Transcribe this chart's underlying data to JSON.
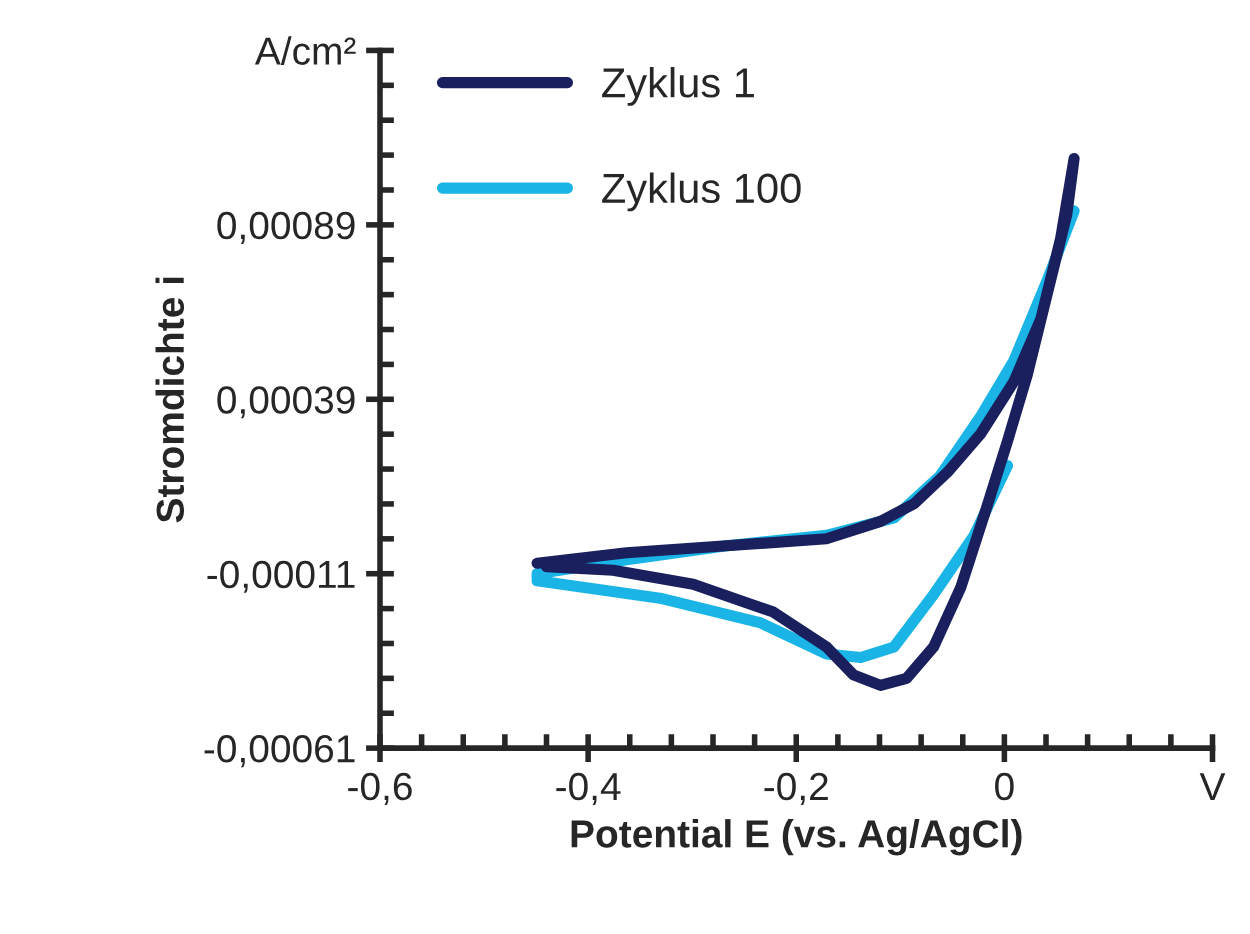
{
  "chart_data": {
    "type": "line",
    "xlabel": "Potential E (vs. Ag/AgCl)",
    "ylabel": "Stromdichte i",
    "series": [
      {
        "name": "Zyklus 1",
        "color": "#1a1f5e",
        "x": [
          -0.449,
          -0.363,
          -0.267,
          -0.171,
          -0.119,
          -0.087,
          -0.055,
          -0.023,
          0.009,
          0.035,
          0.054,
          0.067,
          0.06,
          0.041,
          0.022,
          0.003,
          -0.017,
          -0.042,
          -0.068,
          -0.094,
          -0.119,
          -0.145,
          -0.171,
          -0.222,
          -0.299,
          -0.376,
          -0.44
        ],
        "values": [
          -8e-05,
          -5e-05,
          -3e-05,
          -1e-05,
          4e-05,
          9e-05,
          0.00018,
          0.00029,
          0.00044,
          0.00062,
          0.00085,
          0.00108,
          0.00092,
          0.00069,
          0.00046,
          0.00027,
          8e-05,
          -0.00015,
          -0.00032,
          -0.00041,
          -0.00043,
          -0.0004,
          -0.00032,
          -0.00022,
          -0.00014,
          -0.0001,
          -9e-05
        ]
      },
      {
        "name": "Zyklus 100",
        "color": "#1ab4e6",
        "x": [
          0.003,
          -0.029,
          -0.068,
          -0.106,
          -0.138,
          -0.171,
          -0.235,
          -0.331,
          -0.449,
          -0.449,
          -0.363,
          -0.267,
          -0.171,
          -0.106,
          -0.062,
          -0.023,
          0.009,
          0.041,
          0.067
        ],
        "values": [
          0.0002,
          0.0,
          -0.00017,
          -0.00032,
          -0.00035,
          -0.00034,
          -0.00025,
          -0.00018,
          -0.00013,
          -0.00011,
          -7e-05,
          -3e-05,
          0.0,
          5e-05,
          0.00017,
          0.00034,
          0.0005,
          0.00073,
          0.00093
        ]
      }
    ],
    "xlim": [
      -0.6,
      0.2
    ],
    "xticks": [
      {
        "value": -0.6,
        "label": "-0,6"
      },
      {
        "value": -0.56,
        "label": null
      },
      {
        "value": -0.52,
        "label": null
      },
      {
        "value": -0.48,
        "label": null
      },
      {
        "value": -0.44,
        "label": null
      },
      {
        "value": -0.4,
        "label": "-0,4"
      },
      {
        "value": -0.36,
        "label": null
      },
      {
        "value": -0.32,
        "label": null
      },
      {
        "value": -0.28,
        "label": null
      },
      {
        "value": -0.24,
        "label": null
      },
      {
        "value": -0.2,
        "label": "-0,2"
      },
      {
        "value": -0.16,
        "label": null
      },
      {
        "value": -0.12,
        "label": null
      },
      {
        "value": -0.08,
        "label": null
      },
      {
        "value": -0.04,
        "label": null
      },
      0,
      {
        "value": 0.04,
        "label": null
      },
      {
        "value": 0.08,
        "label": null
      },
      {
        "value": 0.12,
        "label": null
      },
      {
        "value": 0.16,
        "label": null
      },
      {
        "value": 0.2,
        "label": "V"
      }
    ],
    "ylim": [
      -0.00061,
      0.00139
    ],
    "yticks": [
      {
        "value": -0.00061,
        "label": "-0,00061"
      },
      {
        "value": -0.00051,
        "label": null
      },
      {
        "value": -0.00041,
        "label": null
      },
      {
        "value": -0.00031,
        "label": null
      },
      {
        "value": -0.00021,
        "label": null
      },
      {
        "value": -0.00011,
        "label": "-0,00011"
      },
      {
        "value": -1e-05,
        "label": null
      },
      {
        "value": 9e-05,
        "label": null
      },
      {
        "value": 0.00019,
        "label": null
      },
      {
        "value": 0.00029,
        "label": null
      },
      {
        "value": 0.00039,
        "label": "0,00039"
      },
      {
        "value": 0.00049,
        "label": null
      },
      {
        "value": 0.00059,
        "label": null
      },
      {
        "value": 0.00069,
        "label": null
      },
      {
        "value": 0.00079,
        "label": null
      },
      {
        "value": 0.00089,
        "label": "0,00089"
      },
      {
        "value": 0.00099,
        "label": null
      },
      {
        "value": 0.00109,
        "label": null
      },
      {
        "value": 0.00119,
        "label": null
      },
      {
        "value": 0.00129,
        "label": null
      },
      {
        "value": 0.00139,
        "label": "A/cm²"
      }
    ],
    "grid": false,
    "legend": "top left",
    "marker": "none",
    "line_style": "solid"
  }
}
